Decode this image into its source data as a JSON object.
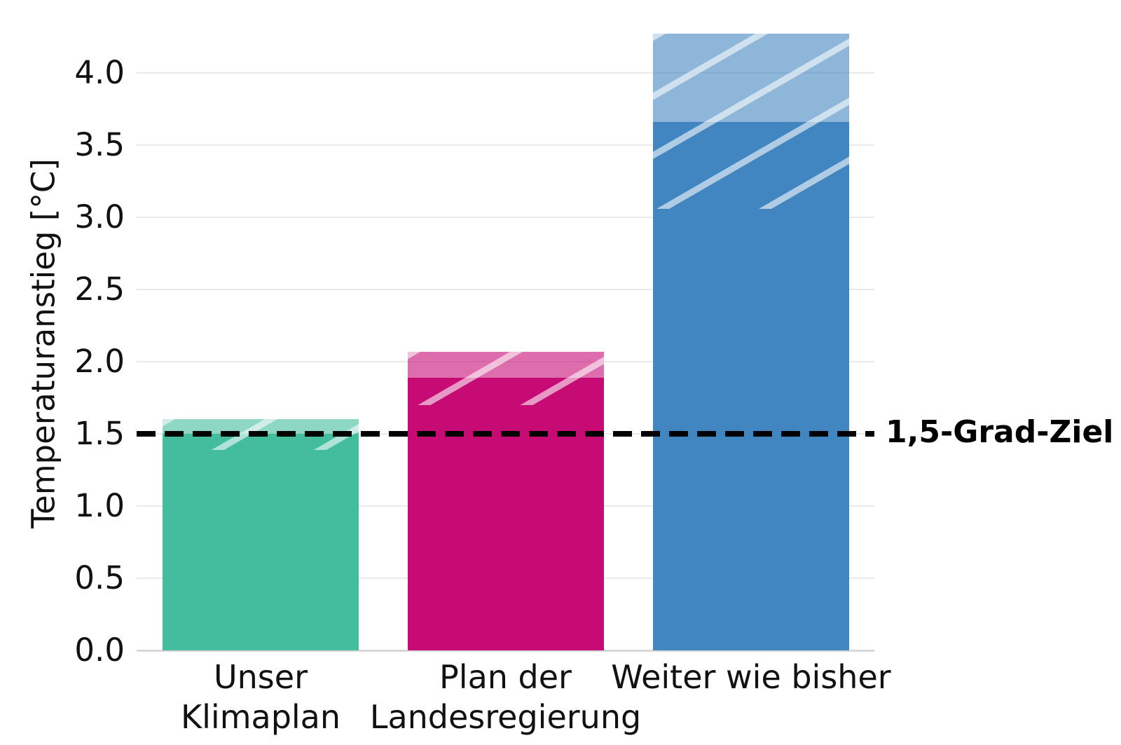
{
  "chart_data": {
    "type": "bar",
    "title": "",
    "ylabel": "Temperaturanstieg [°C]",
    "xlabel": "",
    "categories": [
      "Unser\nKlimaplan",
      "Plan der\nLandesregierung",
      "Weiter wie bisher"
    ],
    "series": [
      {
        "name": "Temperaturanstieg",
        "values": [
          1.5,
          1.89,
          3.66
        ],
        "uncertainty_low": [
          1.39,
          1.7,
          3.06
        ],
        "uncertainty_high": [
          1.6,
          2.07,
          4.27
        ]
      }
    ],
    "bar_colors": [
      "#44BD9F",
      "#C60B75",
      "#4186C0"
    ],
    "bar_style": {
      "uncertainty_hatch": "diagonal-white-stripes",
      "cap_alpha_over_white": 0.6
    },
    "ytick_values": [
      0,
      0.5,
      1,
      1.5,
      2,
      2.5,
      3,
      3.5,
      4
    ],
    "ytick_labels": [
      "0.0",
      "0.5",
      "1.0",
      "1.5",
      "2.0",
      "2.5",
      "3.0",
      "3.5",
      "4.0"
    ],
    "ylim": [
      0,
      4.35
    ],
    "grid": true,
    "legend": false,
    "reference_line": {
      "value": 1.5,
      "label": "1,5-Grad-Ziel",
      "style": "dashed",
      "color": "#000000"
    }
  },
  "colors": {
    "background": "#FFFFFF",
    "grid": "#E9E9E9",
    "axis_baseline": "#D8D8D8",
    "text": "#111111"
  }
}
